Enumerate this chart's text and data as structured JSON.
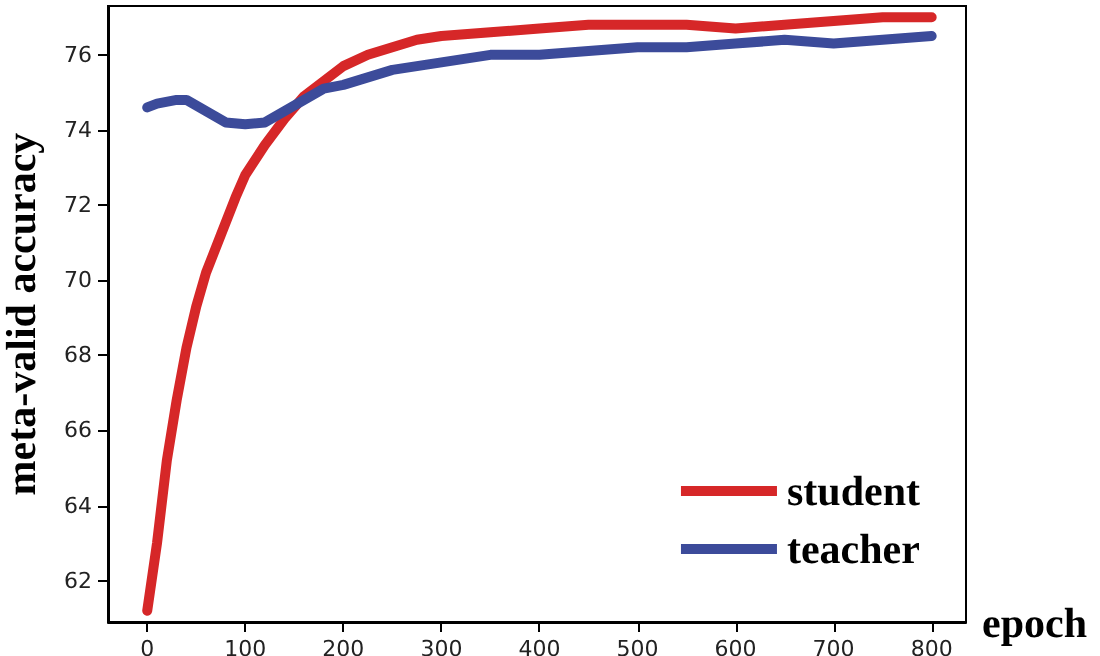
{
  "chart_data": {
    "type": "line",
    "xlabel": "epoch",
    "ylabel": "meta-valid accuracy",
    "xlim": [
      -40,
      835
    ],
    "ylim": [
      60.9,
      77.3
    ],
    "xticks": [
      0,
      100,
      200,
      300,
      400,
      500,
      600,
      700,
      800
    ],
    "yticks": [
      62,
      64,
      66,
      68,
      70,
      72,
      74,
      76
    ],
    "grid": false,
    "legend": "bottom right",
    "marker": "none",
    "line_style": "solid",
    "series": [
      {
        "name": "student",
        "color": "#d62728",
        "x": [
          0,
          10,
          20,
          30,
          40,
          50,
          60,
          75,
          90,
          100,
          120,
          140,
          160,
          180,
          200,
          225,
          250,
          275,
          300,
          350,
          400,
          450,
          500,
          550,
          600,
          650,
          700,
          750,
          800
        ],
        "values": [
          61.2,
          63,
          65.2,
          66.8,
          68.2,
          69.3,
          70.2,
          71.2,
          72.2,
          72.8,
          73.6,
          74.3,
          74.9,
          75.3,
          75.7,
          76.0,
          76.2,
          76.4,
          76.5,
          76.6,
          76.7,
          76.8,
          76.8,
          76.8,
          76.7,
          76.8,
          76.9,
          77.0,
          77.0
        ]
      },
      {
        "name": "teacher",
        "color": "#3c4b9a",
        "x": [
          0,
          10,
          30,
          40,
          60,
          80,
          100,
          120,
          140,
          160,
          180,
          200,
          250,
          300,
          350,
          400,
          450,
          500,
          550,
          600,
          650,
          700,
          750,
          800
        ],
        "values": [
          74.6,
          74.7,
          74.8,
          74.8,
          74.5,
          74.2,
          74.15,
          74.2,
          74.5,
          74.8,
          75.1,
          75.2,
          75.6,
          75.8,
          76.0,
          76.0,
          76.1,
          76.2,
          76.2,
          76.3,
          76.4,
          76.3,
          76.4,
          76.5
        ]
      }
    ]
  }
}
